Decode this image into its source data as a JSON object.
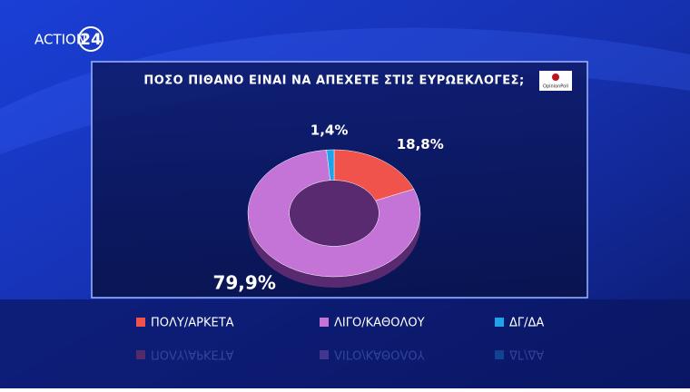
{
  "brand": {
    "name": "ACTION",
    "number": "24"
  },
  "pollster": "OpinionPoll",
  "chart_data": {
    "type": "pie",
    "donut": true,
    "title": "ΠΟΣΟ ΠΙΘΑΝΟ ΕΙΝΑΙ ΝΑ ΑΠΕΧΕΤΕ ΣΤΙΣ ΕΥΡΩΕΚΛΟΓΕΣ;",
    "categories": [
      "ΠΟΛΥ/ΑΡΚΕΤΑ",
      "ΛΙΓΟ/ΚΑΘΟΛΟΥ",
      "ΔΓ/ΔΑ"
    ],
    "values": [
      18.8,
      79.9,
      1.4
    ],
    "value_labels": [
      "18,8%",
      "79,9%",
      "1,4%"
    ],
    "colors": [
      "#f0524c",
      "#c474d6",
      "#1fa3ea"
    ]
  }
}
